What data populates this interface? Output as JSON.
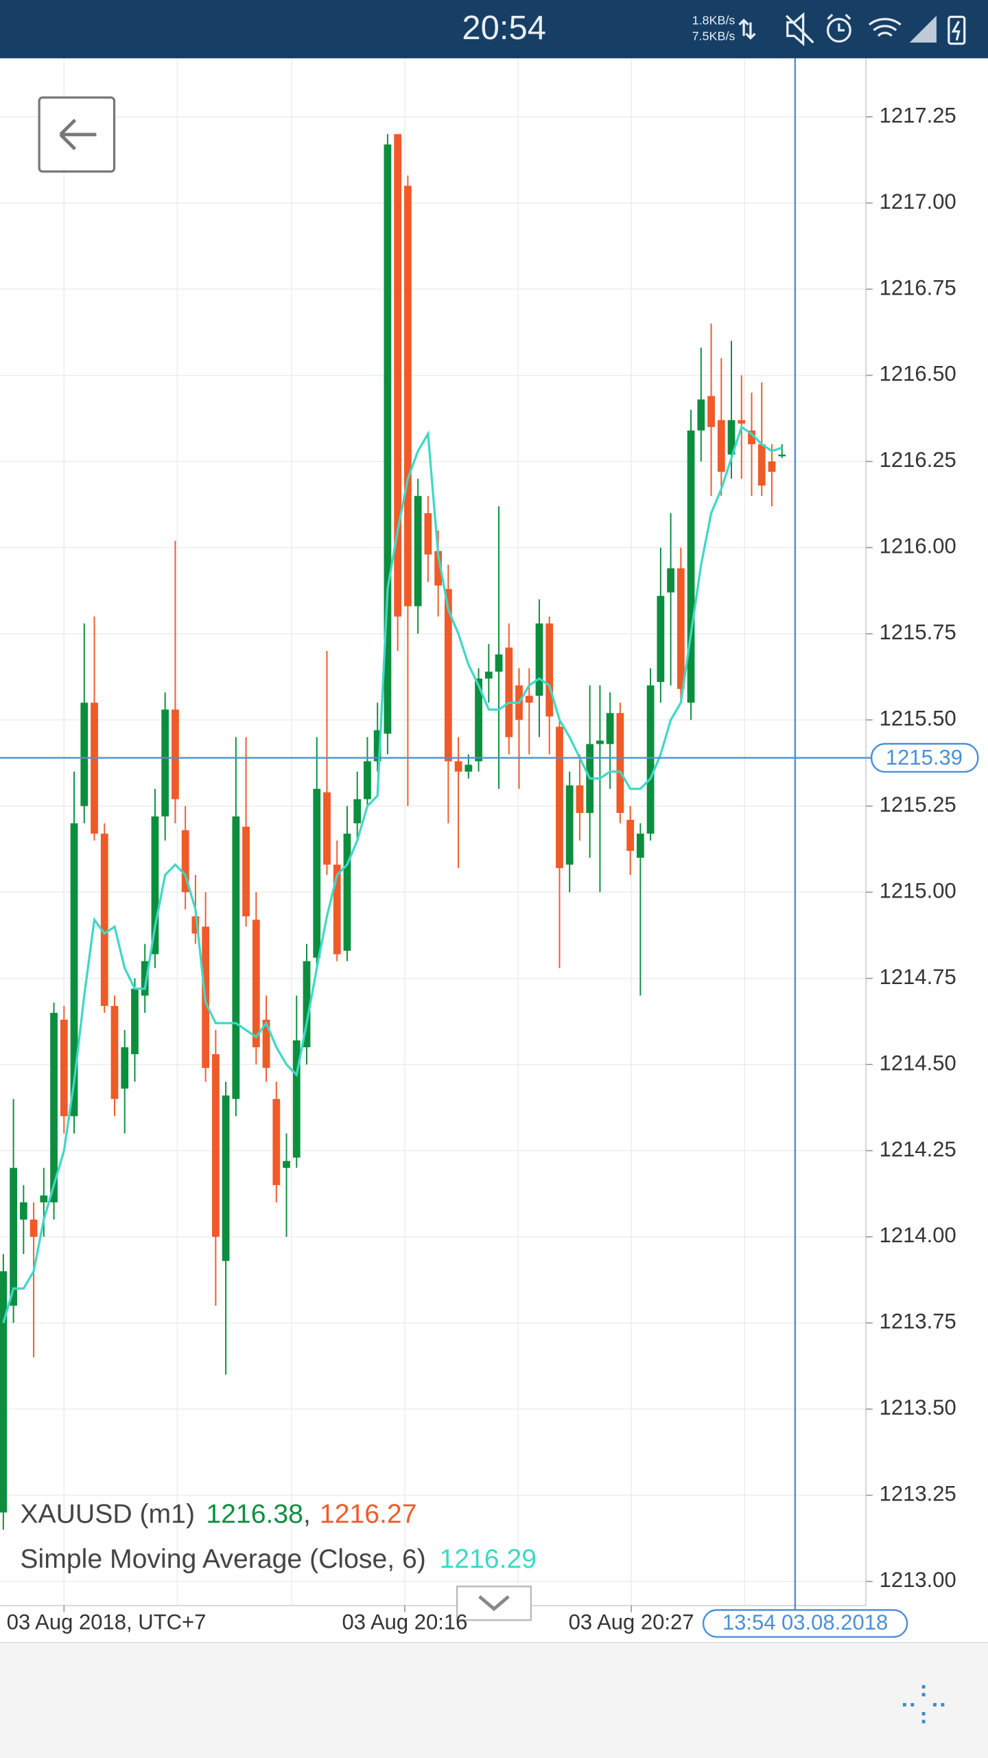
{
  "status_bar": {
    "time": "20:54",
    "up_speed": "1.8KB/s",
    "down_speed": "7.5KB/s"
  },
  "chart_data": {
    "type": "candlestick",
    "ylim": [
      1212.93,
      1217.42
    ],
    "yticks": [
      {
        "value": 1213.0,
        "label": "1213.00"
      },
      {
        "value": 1213.25,
        "label": "1213.25"
      },
      {
        "value": 1213.5,
        "label": "1213.50"
      },
      {
        "value": 1213.75,
        "label": "1213.75"
      },
      {
        "value": 1214.0,
        "label": "1214.00"
      },
      {
        "value": 1214.25,
        "label": "1214.25"
      },
      {
        "value": 1214.5,
        "label": "1214.50"
      },
      {
        "value": 1214.75,
        "label": "1214.75"
      },
      {
        "value": 1215.0,
        "label": "1215.00"
      },
      {
        "value": 1215.25,
        "label": "1215.25"
      },
      {
        "value": 1215.5,
        "label": "1215.50"
      },
      {
        "value": 1215.75,
        "label": "1215.75"
      },
      {
        "value": 1216.0,
        "label": "1216.00"
      },
      {
        "value": 1216.25,
        "label": "1216.25"
      },
      {
        "value": 1216.5,
        "label": "1216.50"
      },
      {
        "value": 1216.75,
        "label": "1216.75"
      },
      {
        "value": 1217.0,
        "label": "1217.00"
      },
      {
        "value": 1217.25,
        "label": "1217.25"
      }
    ],
    "xlim": [
      -0.33,
      85.3
    ],
    "xgrid": [
      6,
      17.2,
      28.5,
      39.7,
      50.9,
      62.1,
      73.3
    ],
    "xlabels": [
      {
        "value": 6,
        "label": "03 Aug 2018, UTC+7"
      },
      {
        "value": 39.7,
        "label": "03 Aug 20:16"
      },
      {
        "value": 62.1,
        "label": "03 Aug 20:27"
      }
    ],
    "grid": true,
    "crosshair": {
      "price": 1215.39,
      "index": 78.3,
      "time_label": "13:54 03.08.2018",
      "color": "#4a90d9"
    },
    "legend_separator": ",",
    "series": [
      {
        "name": "XAUUSD (m1)",
        "up_color": "#0b8f3e",
        "down_color": "#f05a28",
        "legend_values": [
          1216.38,
          1216.27
        ],
        "open": [
          1213.2,
          1213.8,
          1214.05,
          1214.05,
          1214.1,
          1214.1,
          1214.63,
          1214.35,
          1215.25,
          1215.55,
          1215.17,
          1214.67,
          1214.43,
          1214.53,
          1214.7,
          1214.82,
          1215.22,
          1215.53,
          1215.18,
          1214.93,
          1214.9,
          1214.53,
          1213.93,
          1214.4,
          1215.19,
          1214.92,
          1214.63,
          1214.4,
          1214.2,
          1214.23,
          1214.55,
          1214.81,
          1215.29,
          1215.08,
          1214.83,
          1215.2,
          1215.27,
          1215.38,
          1215.46,
          1217.2,
          1217.05,
          1215.83,
          1216.1,
          1215.99,
          1215.88,
          1215.38,
          1215.35,
          1215.38,
          1215.62,
          1215.64,
          1215.71,
          1215.6,
          1215.57,
          1215.57,
          1215.78,
          1215.48,
          1215.08,
          1215.31,
          1215.23,
          1215.43,
          1215.43,
          1215.52,
          1215.21,
          1215.1,
          1215.17,
          1215.61,
          1215.87,
          1215.94,
          1215.55,
          1216.34,
          1216.44,
          1216.37,
          1216.27,
          1216.37,
          1216.34,
          1216.3,
          1216.25,
          1216.27
        ],
        "high": [
          1213.95,
          1214.4,
          1214.15,
          1214.1,
          1214.2,
          1214.68,
          1214.67,
          1215.35,
          1215.78,
          1215.8,
          1215.2,
          1214.7,
          1214.6,
          1214.75,
          1214.85,
          1215.3,
          1215.58,
          1216.02,
          1215.25,
          1215.05,
          1215.0,
          1214.6,
          1214.45,
          1215.45,
          1215.45,
          1215.0,
          1214.7,
          1214.45,
          1214.3,
          1214.7,
          1214.85,
          1215.45,
          1215.7,
          1215.15,
          1215.25,
          1215.35,
          1215.45,
          1215.55,
          1217.2,
          1217.2,
          1217.08,
          1216.2,
          1216.15,
          1216.05,
          1215.95,
          1215.45,
          1215.4,
          1215.65,
          1215.72,
          1216.12,
          1215.78,
          1215.65,
          1215.65,
          1215.85,
          1215.8,
          1215.5,
          1215.35,
          1215.4,
          1215.6,
          1215.6,
          1215.58,
          1215.55,
          1215.25,
          1215.2,
          1215.65,
          1216.0,
          1216.1,
          1216.0,
          1216.4,
          1216.58,
          1216.65,
          1216.55,
          1216.6,
          1216.5,
          1216.45,
          1216.48,
          1216.3,
          1216.3
        ],
        "low": [
          1213.15,
          1213.75,
          1213.95,
          1213.65,
          1214.0,
          1214.05,
          1214.3,
          1214.3,
          1215.2,
          1215.15,
          1214.65,
          1214.35,
          1214.3,
          1214.45,
          1214.65,
          1214.78,
          1215.15,
          1215.2,
          1214.95,
          1214.85,
          1214.45,
          1213.8,
          1213.6,
          1214.35,
          1214.9,
          1214.5,
          1214.45,
          1214.1,
          1214.0,
          1214.2,
          1214.5,
          1214.78,
          1215.05,
          1214.8,
          1214.8,
          1215.15,
          1215.25,
          1215.35,
          1215.4,
          1215.7,
          1215.25,
          1215.75,
          1215.9,
          1215.8,
          1215.2,
          1215.07,
          1215.33,
          1215.35,
          1215.55,
          1215.3,
          1215.4,
          1215.3,
          1215.4,
          1215.45,
          1215.4,
          1214.78,
          1215.0,
          1215.15,
          1215.1,
          1215.0,
          1215.3,
          1215.2,
          1215.05,
          1214.7,
          1215.15,
          1215.55,
          1215.6,
          1215.55,
          1215.5,
          1216.25,
          1216.15,
          1216.15,
          1216.2,
          1216.2,
          1216.15,
          1216.15,
          1216.12,
          1216.26
        ],
        "close": [
          1213.9,
          1214.2,
          1214.1,
          1214.0,
          1214.12,
          1214.65,
          1214.35,
          1215.2,
          1215.55,
          1215.17,
          1214.67,
          1214.4,
          1214.55,
          1214.72,
          1214.8,
          1215.22,
          1215.53,
          1215.27,
          1215.0,
          1214.88,
          1214.49,
          1214.0,
          1214.41,
          1215.22,
          1214.93,
          1214.55,
          1214.49,
          1214.15,
          1214.22,
          1214.57,
          1214.8,
          1215.3,
          1215.08,
          1214.82,
          1215.17,
          1215.27,
          1215.38,
          1215.47,
          1217.17,
          1215.8,
          1215.83,
          1216.15,
          1215.98,
          1215.89,
          1215.38,
          1215.35,
          1215.37,
          1215.62,
          1215.64,
          1215.69,
          1215.45,
          1215.5,
          1215.55,
          1215.78,
          1215.51,
          1215.07,
          1215.31,
          1215.23,
          1215.43,
          1215.44,
          1215.52,
          1215.23,
          1215.12,
          1215.17,
          1215.6,
          1215.86,
          1215.94,
          1215.59,
          1216.34,
          1216.43,
          1216.35,
          1216.22,
          1216.37,
          1216.36,
          1216.3,
          1216.18,
          1216.22,
          1216.27
        ]
      },
      {
        "name": "Simple Moving Average (Close, 6)",
        "color": "#3fd8c6",
        "legend_value": 1216.29,
        "values": [
          1213.75,
          1213.85,
          1213.85,
          1213.9,
          1214.05,
          1214.15,
          1214.25,
          1214.45,
          1214.7,
          1214.92,
          1214.88,
          1214.9,
          1214.78,
          1214.72,
          1214.72,
          1214.9,
          1215.05,
          1215.08,
          1215.05,
          1214.95,
          1214.68,
          1214.62,
          1214.62,
          1214.62,
          1214.6,
          1214.58,
          1214.62,
          1214.55,
          1214.5,
          1214.47,
          1214.62,
          1214.78,
          1214.93,
          1215.05,
          1215.08,
          1215.15,
          1215.25,
          1215.28,
          1215.88,
          1216.05,
          1216.2,
          1216.28,
          1216.33,
          1215.98,
          1215.82,
          1215.75,
          1215.66,
          1215.6,
          1215.53,
          1215.53,
          1215.55,
          1215.55,
          1215.6,
          1215.62,
          1215.6,
          1215.5,
          1215.45,
          1215.39,
          1215.33,
          1215.33,
          1215.35,
          1215.35,
          1215.3,
          1215.3,
          1215.33,
          1215.4,
          1215.5,
          1215.55,
          1215.75,
          1215.95,
          1216.1,
          1216.17,
          1216.26,
          1216.35,
          1216.33,
          1216.3,
          1216.28,
          1216.29
        ]
      }
    ]
  }
}
